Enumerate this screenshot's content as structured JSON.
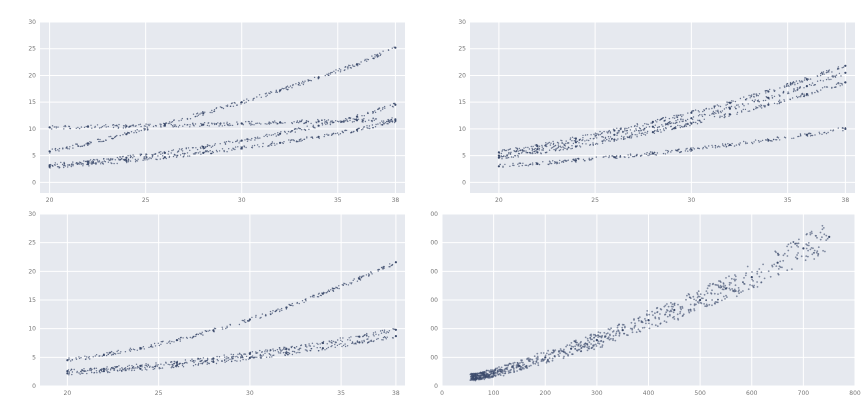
{
  "chart_data": [
    {
      "type": "scatter",
      "xlabel": "",
      "ylabel": "",
      "xlim": [
        19.5,
        38.5
      ],
      "ylim": [
        -2,
        30
      ],
      "x_ticks": [
        "20",
        "25",
        "30",
        "35",
        "38"
      ],
      "y_ticks": [
        "0",
        "5",
        "10",
        "15",
        "20",
        "25",
        "30"
      ],
      "grid": true,
      "series": [
        {
          "x": [
            20,
            22,
            24,
            26,
            28,
            30,
            32,
            34,
            36,
            38
          ],
          "y": [
            5.8,
            7.3,
            9.0,
            10.9,
            12.9,
            15.0,
            17.2,
            19.6,
            22.1,
            25.2
          ]
        },
        {
          "x": [
            20,
            22,
            24,
            26,
            28,
            30,
            32,
            34,
            36,
            38
          ],
          "y": [
            3.2,
            3.8,
            4.6,
            5.5,
            6.6,
            7.8,
            9.1,
            10.6,
            12.3,
            14.5
          ]
        },
        {
          "x": [
            20,
            22,
            24,
            26,
            28,
            30,
            32,
            34,
            36,
            38
          ],
          "y": [
            2.9,
            3.4,
            4.0,
            4.7,
            5.5,
            6.4,
            7.4,
            8.5,
            9.8,
            11.5
          ]
        },
        {
          "x": [
            20,
            22,
            24,
            26,
            28,
            30,
            32,
            34,
            36,
            38
          ],
          "y": [
            10.3,
            10.4,
            10.5,
            10.6,
            10.8,
            11.0,
            11.2,
            11.4,
            11.6,
            11.8
          ]
        }
      ]
    },
    {
      "type": "scatter",
      "xlabel": "",
      "ylabel": "",
      "xlim": [
        18.5,
        38.5
      ],
      "ylim": [
        -2,
        30
      ],
      "x_ticks": [
        "20",
        "25",
        "30",
        "35",
        "38"
      ],
      "y_ticks": [
        "0",
        "5",
        "10",
        "15",
        "20",
        "25",
        "30"
      ],
      "grid": true,
      "series": [
        {
          "x": [
            20,
            22,
            24,
            26,
            28,
            30,
            32,
            34,
            36,
            38
          ],
          "y": [
            5.6,
            6.8,
            8.2,
            9.7,
            11.3,
            13.0,
            14.9,
            17.0,
            19.3,
            21.8
          ]
        },
        {
          "x": [
            20,
            22,
            24,
            26,
            28,
            30,
            32,
            34,
            36,
            38
          ],
          "y": [
            5.0,
            6.2,
            7.5,
            8.9,
            10.4,
            12.0,
            13.8,
            15.8,
            18.0,
            20.5
          ]
        },
        {
          "x": [
            20,
            22,
            24,
            26,
            28,
            30,
            32,
            34,
            36,
            38
          ],
          "y": [
            4.6,
            5.6,
            6.7,
            8.0,
            9.4,
            11.0,
            12.7,
            14.5,
            16.5,
            18.7
          ]
        },
        {
          "x": [
            20,
            22,
            24,
            26,
            28,
            30,
            32,
            34,
            36,
            38
          ],
          "y": [
            3.0,
            3.5,
            4.1,
            4.7,
            5.4,
            6.1,
            7.0,
            7.9,
            8.9,
            10.0
          ]
        }
      ]
    },
    {
      "type": "scatter",
      "xlabel": "",
      "ylabel": "",
      "xlim": [
        18.5,
        38.5
      ],
      "ylim": [
        0,
        30
      ],
      "x_ticks": [
        "20",
        "25",
        "30",
        "35",
        "38"
      ],
      "y_ticks": [
        "0",
        "5",
        "10",
        "15",
        "20",
        "25",
        "30"
      ],
      "grid": true,
      "series": [
        {
          "x": [
            20,
            22,
            24,
            26,
            28,
            30,
            32,
            34,
            36,
            38
          ],
          "y": [
            4.5,
            5.4,
            6.6,
            8.0,
            9.7,
            11.6,
            13.7,
            16.1,
            18.7,
            21.6
          ]
        },
        {
          "x": [
            20,
            22,
            24,
            26,
            28,
            30,
            32,
            34,
            36,
            38
          ],
          "y": [
            2.6,
            3.0,
            3.5,
            4.1,
            4.8,
            5.6,
            6.5,
            7.5,
            8.6,
            9.8
          ]
        },
        {
          "x": [
            20,
            22,
            24,
            26,
            28,
            30,
            32,
            34,
            36,
            38
          ],
          "y": [
            2.2,
            2.6,
            3.0,
            3.6,
            4.2,
            4.9,
            5.7,
            6.6,
            7.6,
            8.7
          ]
        }
      ]
    },
    {
      "type": "scatter",
      "xlabel": "",
      "ylabel": "",
      "xlim": [
        0,
        800
      ],
      "ylim": [
        0,
        600
      ],
      "x_ticks": [
        "0",
        "100",
        "200",
        "300",
        "400",
        "500",
        "600",
        "700",
        "800"
      ],
      "y_ticks": [
        "0",
        "100",
        "200",
        "300",
        "400",
        "500",
        "600"
      ],
      "grid": true,
      "series": [
        {
          "x": [
            60,
            100,
            150,
            200,
            250,
            300,
            350,
            400,
            450,
            500,
            550,
            600,
            650,
            700,
            750
          ],
          "y": [
            30,
            45,
            70,
            100,
            130,
            160,
            195,
            230,
            265,
            300,
            340,
            380,
            430,
            480,
            520
          ]
        }
      ]
    }
  ]
}
